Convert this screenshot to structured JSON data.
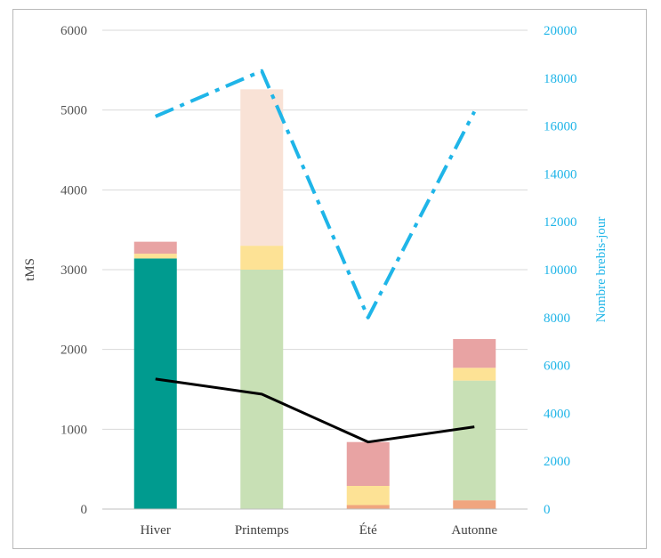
{
  "chart_data": {
    "type": "bar",
    "stacked": true,
    "categories": [
      "Hiver",
      "Printemps",
      "Été",
      "Autonne"
    ],
    "ylabel": "tMS",
    "ylim": [
      0,
      6000
    ],
    "yticks": [
      0,
      1000,
      2000,
      3000,
      4000,
      5000,
      6000
    ],
    "y2label": "Nombre brebis-jour",
    "y2lim": [
      0,
      20000
    ],
    "y2ticks": [
      0,
      2000,
      4000,
      6000,
      8000,
      10000,
      12000,
      14000,
      16000,
      18000,
      20000
    ],
    "grid": true,
    "legend": "none",
    "series": [
      {
        "kind": "bar",
        "axis": "left",
        "color": "#009b8f",
        "values": [
          3140,
          0,
          0,
          0
        ]
      },
      {
        "kind": "bar",
        "axis": "left",
        "color": "#f0a57f",
        "values": [
          0,
          0,
          50,
          110
        ]
      },
      {
        "kind": "bar",
        "axis": "left",
        "color": "#c8e0b5",
        "values": [
          0,
          3000,
          0,
          1500
        ]
      },
      {
        "kind": "bar",
        "axis": "left",
        "color": "#fde295",
        "values": [
          60,
          300,
          240,
          160
        ]
      },
      {
        "kind": "bar",
        "axis": "left",
        "color": "#e8a3a3",
        "values": [
          150,
          0,
          550,
          360
        ]
      },
      {
        "kind": "bar",
        "axis": "left",
        "color": "#f9e2d6",
        "values": [
          0,
          1960,
          0,
          0
        ]
      },
      {
        "kind": "line",
        "axis": "right",
        "color": "#1fb5e8",
        "dash": "dashdot",
        "values": [
          16400,
          18300,
          8000,
          16600
        ]
      },
      {
        "kind": "line",
        "axis": "left",
        "color": "#000000",
        "values": [
          1630,
          1440,
          840,
          1030
        ]
      }
    ]
  }
}
